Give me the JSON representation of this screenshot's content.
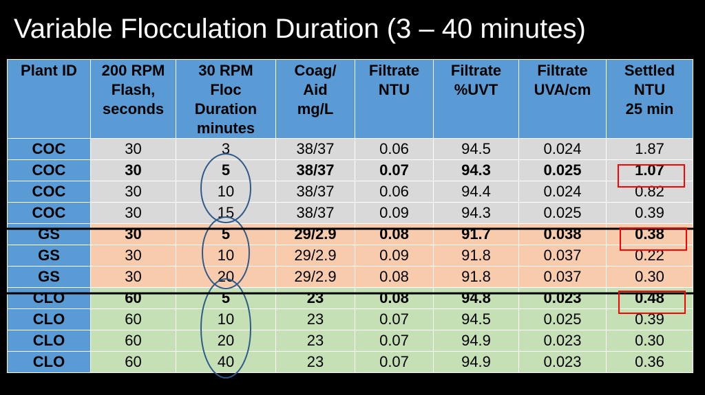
{
  "title": "Variable Flocculation Duration (3 – 40 minutes)",
  "headers": [
    [
      "Plant ID"
    ],
    [
      "200 RPM",
      "Flash,",
      "seconds"
    ],
    [
      "30 RPM",
      "Floc",
      "Duration",
      "minutes"
    ],
    [
      "Coag/",
      "Aid",
      "mg/L"
    ],
    [
      "Filtrate",
      "NTU"
    ],
    [
      "Filtrate",
      "%UVT"
    ],
    [
      "Filtrate",
      "UVA/cm"
    ],
    [
      "Settled",
      "NTU",
      "25 min"
    ]
  ],
  "rows": [
    {
      "group": "coc",
      "bold": false,
      "cells": [
        "COC",
        "30",
        "3",
        "38/37",
        "0.06",
        "94.5",
        "0.024",
        "1.87"
      ]
    },
    {
      "group": "coc",
      "bold": true,
      "cells": [
        "COC",
        "30",
        "5",
        "38/37",
        "0.07",
        "94.3",
        "0.025",
        "1.07"
      ]
    },
    {
      "group": "coc",
      "bold": false,
      "cells": [
        "COC",
        "30",
        "10",
        "38/37",
        "0.06",
        "94.4",
        "0.024",
        "0.82"
      ]
    },
    {
      "group": "coc",
      "bold": false,
      "cells": [
        "COC",
        "30",
        "15",
        "38/37",
        "0.09",
        "94.3",
        "0.025",
        "0.39"
      ]
    },
    {
      "group": "gs",
      "bold": true,
      "cells": [
        "GS",
        "30",
        "5",
        "29/2.9",
        "0.08",
        "91.7",
        "0.038",
        "0.38"
      ]
    },
    {
      "group": "gs",
      "bold": false,
      "cells": [
        "GS",
        "30",
        "10",
        "29/2.9",
        "0.09",
        "91.8",
        "0.037",
        "0.22"
      ]
    },
    {
      "group": "gs",
      "bold": false,
      "cells": [
        "GS",
        "30",
        "20",
        "29/2.9",
        "0.08",
        "91.8",
        "0.037",
        "0.30"
      ]
    },
    {
      "group": "clo",
      "bold": true,
      "cells": [
        "CLO",
        "60",
        "5",
        "23",
        "0.08",
        "94.8",
        "0.023",
        "0.48"
      ]
    },
    {
      "group": "clo",
      "bold": false,
      "cells": [
        "CLO",
        "60",
        "10",
        "23",
        "0.07",
        "94.5",
        "0.025",
        "0.39"
      ]
    },
    {
      "group": "clo",
      "bold": false,
      "cells": [
        "CLO",
        "60",
        "20",
        "23",
        "0.07",
        "94.9",
        "0.023",
        "0.30"
      ]
    },
    {
      "group": "clo",
      "bold": false,
      "cells": [
        "CLO",
        "60",
        "40",
        "23",
        "0.07",
        "94.9",
        "0.023",
        "0.36"
      ]
    }
  ],
  "annotations": {
    "circle_color": "#2e5a8a",
    "box_color": "#ff0000",
    "line_color": "#000000"
  }
}
